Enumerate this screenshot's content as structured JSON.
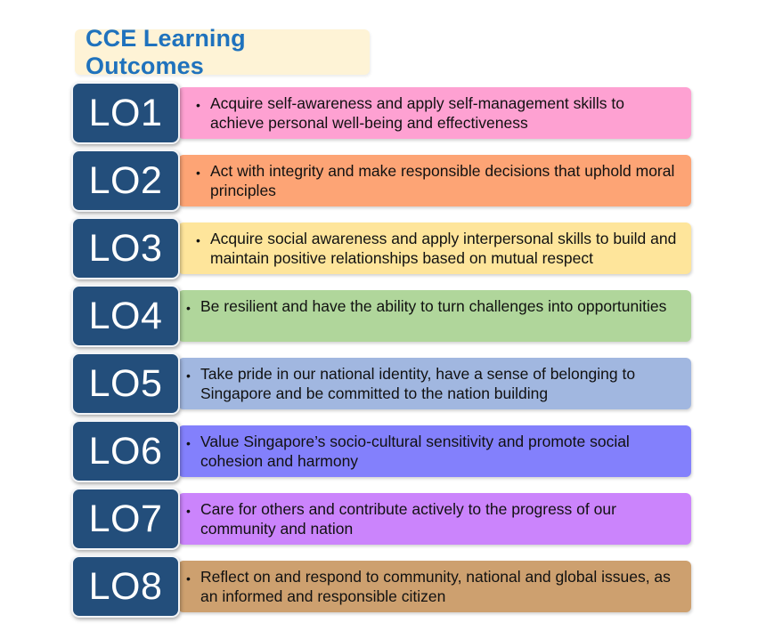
{
  "title": "CCE Learning Outcomes",
  "bullet": "•",
  "outcomes": [
    {
      "label": "LO1",
      "text": "Acquire self-awareness and apply self-management skills to achieve personal well-being and effectiveness",
      "color": "#fea1d2"
    },
    {
      "label": "LO2",
      "text": "Act with integrity and make responsible decisions that uphold moral principles",
      "color": "#fda475"
    },
    {
      "label": "LO3",
      "text": "Acquire social awareness and apply interpersonal skills to build and maintain positive relationships based on mutual respect",
      "color": "#fee59b"
    },
    {
      "label": "LO4",
      "text": "Be resilient and have the ability to turn challenges into opportunities",
      "color": "#b0d69b"
    },
    {
      "label": "LO5",
      "text": "Take pride in our national identity, have a sense of belonging to Singapore and be committed to the nation building",
      "color": "#a1b7e0"
    },
    {
      "label": "LO6",
      "text": "Value Singapore’s socio-cultural sensitivity and promote social cohesion and harmony",
      "color": "#8380fc"
    },
    {
      "label": "LO7",
      "text": "Care for others and contribute actively to the progress of our community and nation",
      "color": "#cb84fc"
    },
    {
      "label": "LO8",
      "text": "Reflect on and respond to community, national and global issues, as an informed and responsible citizen",
      "color": "#cda06f"
    }
  ]
}
